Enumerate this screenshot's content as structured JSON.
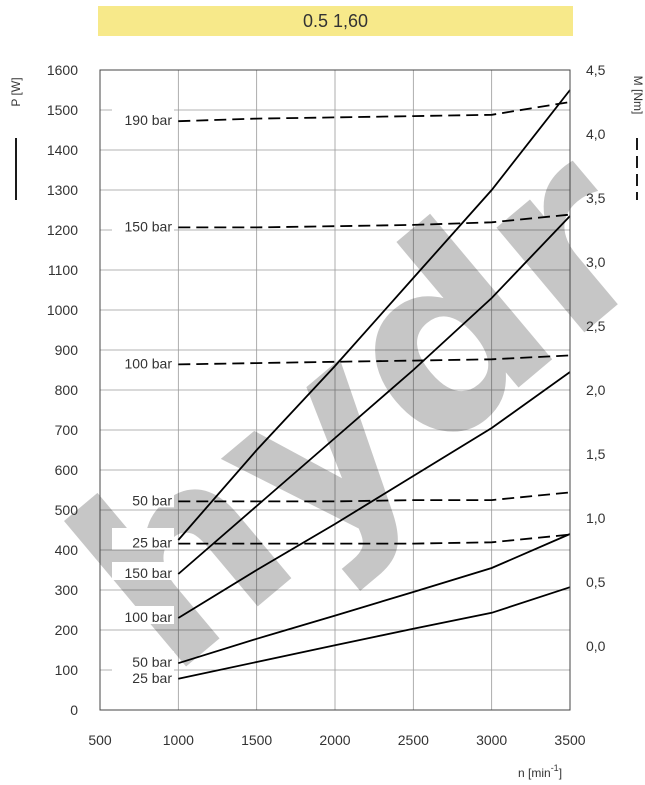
{
  "banner": {
    "text": "0.5  1,60"
  },
  "watermark": {
    "text": "hydr"
  },
  "chart_data": {
    "type": "line",
    "xlabel": "n [min",
    "xlabel_sup": "-1",
    "xlabel_end": "]",
    "ylabel_left": "P [W]",
    "ylabel_right": "M [Nm]",
    "xlim": [
      500,
      3500
    ],
    "ylim_left": [
      0,
      1600
    ],
    "ylim_right": [
      -0.5,
      4.5
    ],
    "x_ticks": [
      500,
      1000,
      1500,
      2000,
      2500,
      3000,
      3500
    ],
    "y_ticks_left": [
      0,
      100,
      200,
      300,
      400,
      500,
      600,
      700,
      800,
      900,
      1000,
      1100,
      1200,
      1300,
      1400,
      1500,
      1600
    ],
    "y_ticks_right": [
      "0,0",
      "0,5",
      "1,0",
      "1,5",
      "2,0",
      "2,5",
      "3,0",
      "3,5",
      "4,0",
      "4,5"
    ],
    "y_ticks_right_values": [
      0,
      0.5,
      1,
      1.5,
      2,
      2.5,
      3,
      3.5,
      4,
      4.5
    ],
    "grid": true,
    "power_series": [
      {
        "name": "190 bar",
        "x": [
          1000,
          1500,
          2000,
          2500,
          3000,
          3500
        ],
        "y": [
          425,
          650,
          860,
          1080,
          1300,
          1550
        ]
      },
      {
        "name": "150 bar",
        "x": [
          1000,
          1500,
          2000,
          2500,
          3000,
          3500
        ],
        "y": [
          340,
          510,
          680,
          850,
          1030,
          1235
        ]
      },
      {
        "name": "100 bar",
        "x": [
          1000,
          1500,
          2000,
          2500,
          3000,
          3500
        ],
        "y": [
          230,
          350,
          465,
          585,
          705,
          845
        ]
      },
      {
        "name": "50 bar",
        "x": [
          1000,
          1500,
          2000,
          2500,
          3000,
          3500
        ],
        "y": [
          117,
          178,
          236,
          295,
          355,
          440
        ]
      },
      {
        "name": "25 bar",
        "x": [
          1000,
          1500,
          2000,
          2500,
          3000,
          3500
        ],
        "y": [
          78,
          120,
          162,
          203,
          243,
          307
        ]
      }
    ],
    "torque_series": [
      {
        "name": "190 bar",
        "x": [
          1000,
          1500,
          2000,
          2500,
          3000,
          3500
        ],
        "y": [
          4.1,
          4.12,
          4.13,
          4.14,
          4.15,
          4.25
        ]
      },
      {
        "name": "150 bar",
        "x": [
          1000,
          1500,
          2000,
          2500,
          3000,
          3500
        ],
        "y": [
          3.27,
          3.27,
          3.28,
          3.29,
          3.31,
          3.37
        ]
      },
      {
        "name": "100 bar",
        "x": [
          1000,
          1500,
          2000,
          2500,
          3000,
          3500
        ],
        "y": [
          2.2,
          2.21,
          2.22,
          2.23,
          2.24,
          2.27
        ]
      },
      {
        "name": "50 bar",
        "x": [
          1000,
          1500,
          2000,
          2500,
          3000,
          3500
        ],
        "y": [
          1.13,
          1.13,
          1.13,
          1.14,
          1.14,
          1.2
        ]
      },
      {
        "name": "25 bar",
        "x": [
          1000,
          1500,
          2000,
          2500,
          3000,
          3500
        ],
        "y": [
          0.8,
          0.8,
          0.8,
          0.8,
          0.81,
          0.87
        ]
      }
    ]
  }
}
